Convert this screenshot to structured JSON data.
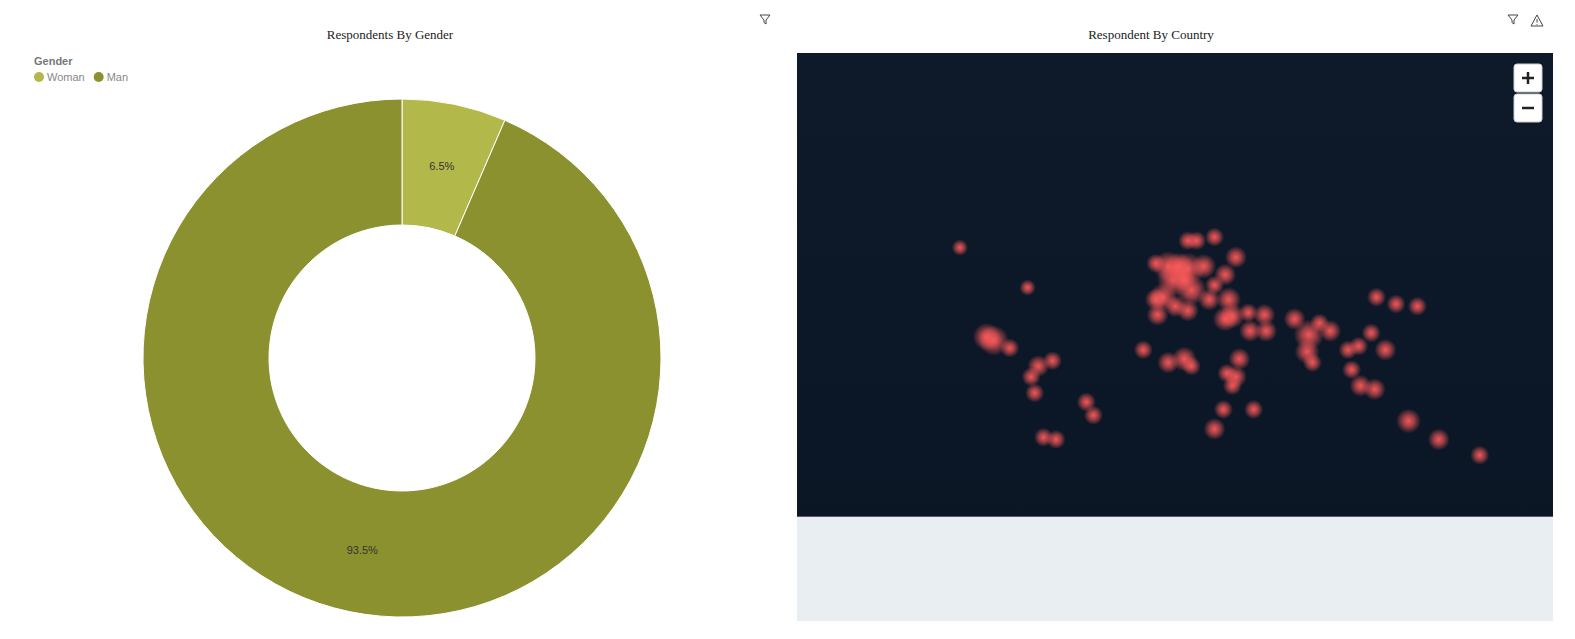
{
  "chart_data": [
    {
      "type": "pie",
      "title": "Respondents By Gender",
      "legend_title": "Gender",
      "categories": [
        "Woman",
        "Man"
      ],
      "values": [
        6.5,
        93.5
      ],
      "value_labels": [
        "6.5%",
        "93.5%"
      ],
      "data_labels": true,
      "colors": [
        "#b3b84b",
        "#8b912f"
      ],
      "legend": "top-left"
    },
    {
      "type": "map",
      "title": "Respondent By Country",
      "color": "#ff5a5a",
      "x": [
        -1,
        2,
        10,
        5,
        12,
        -4,
        -8,
        19,
        15,
        10,
        25,
        37,
        31,
        25,
        22,
        33,
        8,
        -8,
        35,
        31,
        45,
        54,
        53,
        44,
        70,
        78,
        77,
        90,
        84,
        80,
        116,
        113,
        139,
        127,
        106,
        100,
        102,
        107,
        115,
        121,
        -7,
        3,
        10,
        8,
        -1,
        -15,
        37,
        39,
        32,
        35,
        25,
        30,
        47,
        12,
        -99,
        -103,
        -90,
        -74,
        -66,
        -78,
        -76,
        -47,
        -43,
        -71,
        -64,
        -118,
        -80,
        134,
        151,
        174
      ],
      "y": [
        52,
        47,
        51,
        52,
        43,
        40,
        39,
        52,
        60,
        60,
        61,
        55,
        49,
        45,
        39,
        39,
        47,
        53,
        31.5,
        30,
        24,
        24,
        32,
        33,
        30,
        22,
        13,
        24,
        28,
        7,
        40,
        23,
        36,
        37,
        16,
        14,
        3,
        -6,
        -8,
        14,
        32,
        36,
        34,
        9,
        7,
        14,
        -1,
        9,
        1,
        -6,
        -29,
        -19,
        -19,
        5,
        19,
        21,
        15,
        5,
        8,
        -1,
        -10,
        -15,
        -22,
        -33,
        -34,
        58,
        44,
        -25,
        -34,
        -41
      ],
      "values": [
        8,
        9,
        9,
        7,
        8,
        7,
        5,
        6,
        4,
        4,
        4,
        5,
        5,
        4,
        5,
        6,
        5,
        4,
        6,
        6,
        5,
        5,
        5,
        4,
        5,
        8,
        6,
        5,
        4,
        4,
        4,
        4,
        4,
        4,
        4,
        4,
        4,
        5,
        5,
        5,
        5,
        5,
        5,
        6,
        5,
        4,
        5,
        5,
        4,
        4,
        5,
        4,
        4,
        4,
        8,
        7,
        4,
        5,
        4,
        4,
        4,
        4,
        4,
        4,
        4,
        3,
        3,
        6,
        5,
        4
      ]
    }
  ]
}
